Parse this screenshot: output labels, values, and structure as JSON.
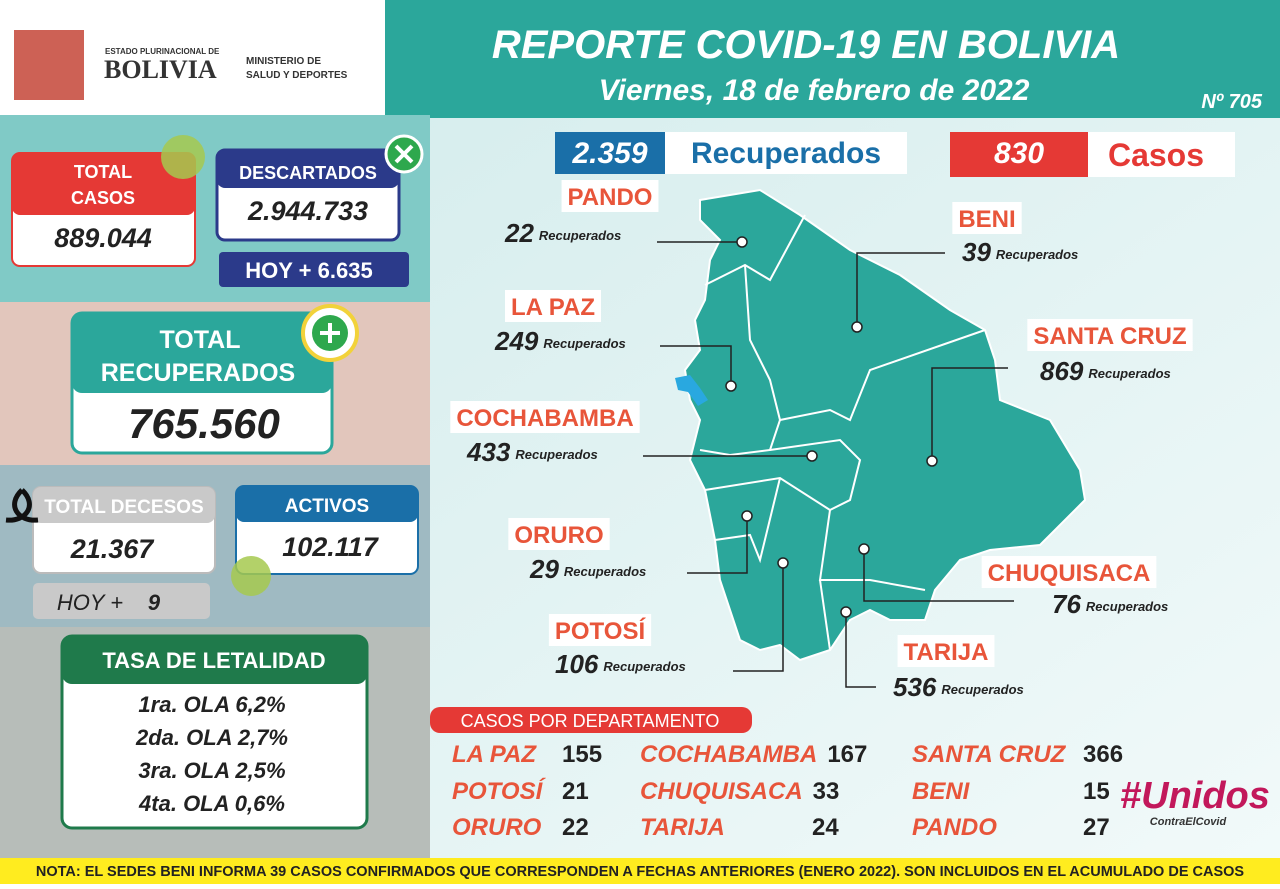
{
  "header": {
    "logo_small": "ESTADO PLURINACIONAL DE",
    "logo_big": "BOLIVIA",
    "ministry": [
      "MINISTERIO DE",
      "SALUD Y DEPORTES"
    ],
    "title": "REPORTE COVID-19 EN BOLIVIA",
    "date": "Viernes, 18 de febrero de 2022",
    "number": "Nº 705"
  },
  "summary": {
    "total_casos": {
      "label": [
        "TOTAL",
        "CASOS"
      ],
      "value": "889.044"
    },
    "descartados": {
      "label": "DESCARTADOS",
      "value": "2.944.733",
      "today": "HOY + 6.635"
    },
    "total_recuperados": {
      "label": [
        "TOTAL",
        "RECUPERADOS"
      ],
      "value": "765.560"
    },
    "total_decesos": {
      "label": "TOTAL DECESOS",
      "value": "21.367",
      "today_label": "HOY +",
      "today_value": "9"
    },
    "activos": {
      "label": "ACTIVOS",
      "value": "102.117"
    }
  },
  "letalidad": {
    "title": "TASA DE LETALIDAD",
    "rows": [
      "1ra. OLA 6,2%",
      "2da. OLA 2,7%",
      "3ra. OLA 2,5%",
      "4ta. OLA 0,6%"
    ]
  },
  "daily": {
    "recuperados_value": "2.359",
    "recuperados_label": "Recuperados",
    "casos_value": "830",
    "casos_label": "Casos"
  },
  "map": {
    "recovered_label": "Recuperados",
    "departments": [
      {
        "name": "PANDO",
        "recovered": "22"
      },
      {
        "name": "BENI",
        "recovered": "39"
      },
      {
        "name": "LA PAZ",
        "recovered": "249"
      },
      {
        "name": "SANTA CRUZ",
        "recovered": "869"
      },
      {
        "name": "COCHABAMBA",
        "recovered": "433"
      },
      {
        "name": "ORURO",
        "recovered": "29"
      },
      {
        "name": "POTOSÍ",
        "recovered": "106"
      },
      {
        "name": "CHUQUISACA",
        "recovered": "76"
      },
      {
        "name": "TARIJA",
        "recovered": "536"
      }
    ]
  },
  "cases_by_department": {
    "title": "CASOS POR DEPARTAMENTO",
    "items": [
      {
        "name": "LA PAZ",
        "value": "155"
      },
      {
        "name": "COCHABAMBA",
        "value": "167"
      },
      {
        "name": "SANTA CRUZ",
        "value": "366"
      },
      {
        "name": "POTOSÍ",
        "value": "21"
      },
      {
        "name": "CHUQUISACA",
        "value": "33"
      },
      {
        "name": "BENI",
        "value": "15"
      },
      {
        "name": "ORURO",
        "value": "22"
      },
      {
        "name": "TARIJA",
        "value": "24"
      },
      {
        "name": "PANDO",
        "value": "27"
      }
    ]
  },
  "campaign": {
    "tag": "#Unidos",
    "sub": "ContraElCovid"
  },
  "note": "NOTA: EL SEDES BENI INFORMA 39 CASOS CONFIRMADOS QUE CORRESPONDEN A FECHAS ANTERIORES (ENERO 2022). SON INCLUIDOS EN EL ACUMULADO DE CASOS"
}
